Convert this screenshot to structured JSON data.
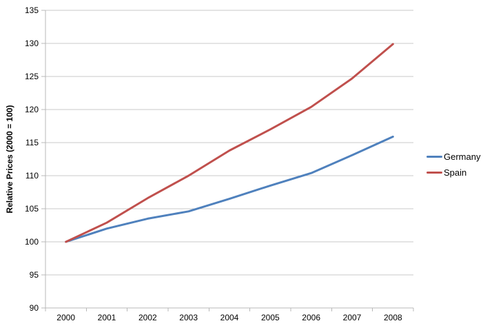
{
  "chart_data": {
    "type": "line",
    "title": "",
    "xlabel": "",
    "ylabel": "Relative Prices (2000 = 100)",
    "categories": [
      "2000",
      "2001",
      "2002",
      "2003",
      "2004",
      "2005",
      "2006",
      "2007",
      "2008"
    ],
    "series": [
      {
        "name": "Germany",
        "color": "#4F81BD",
        "values": [
          100,
          102,
          103.5,
          104.6,
          106.5,
          108.5,
          110.4,
          113.1,
          115.9
        ]
      },
      {
        "name": "Spain",
        "color": "#C0504D",
        "values": [
          100,
          102.9,
          106.6,
          110,
          113.8,
          117,
          120.4,
          124.7,
          129.9
        ]
      }
    ],
    "ylim": [
      90,
      135
    ],
    "yticks": [
      90,
      95,
      100,
      105,
      110,
      115,
      120,
      125,
      130,
      135
    ],
    "grid": true,
    "legend_position": "right"
  },
  "colors": {
    "grid": "#C9C9C9",
    "axis": "#B8B8B8",
    "text": "#000000",
    "background": "#FFFFFF"
  }
}
